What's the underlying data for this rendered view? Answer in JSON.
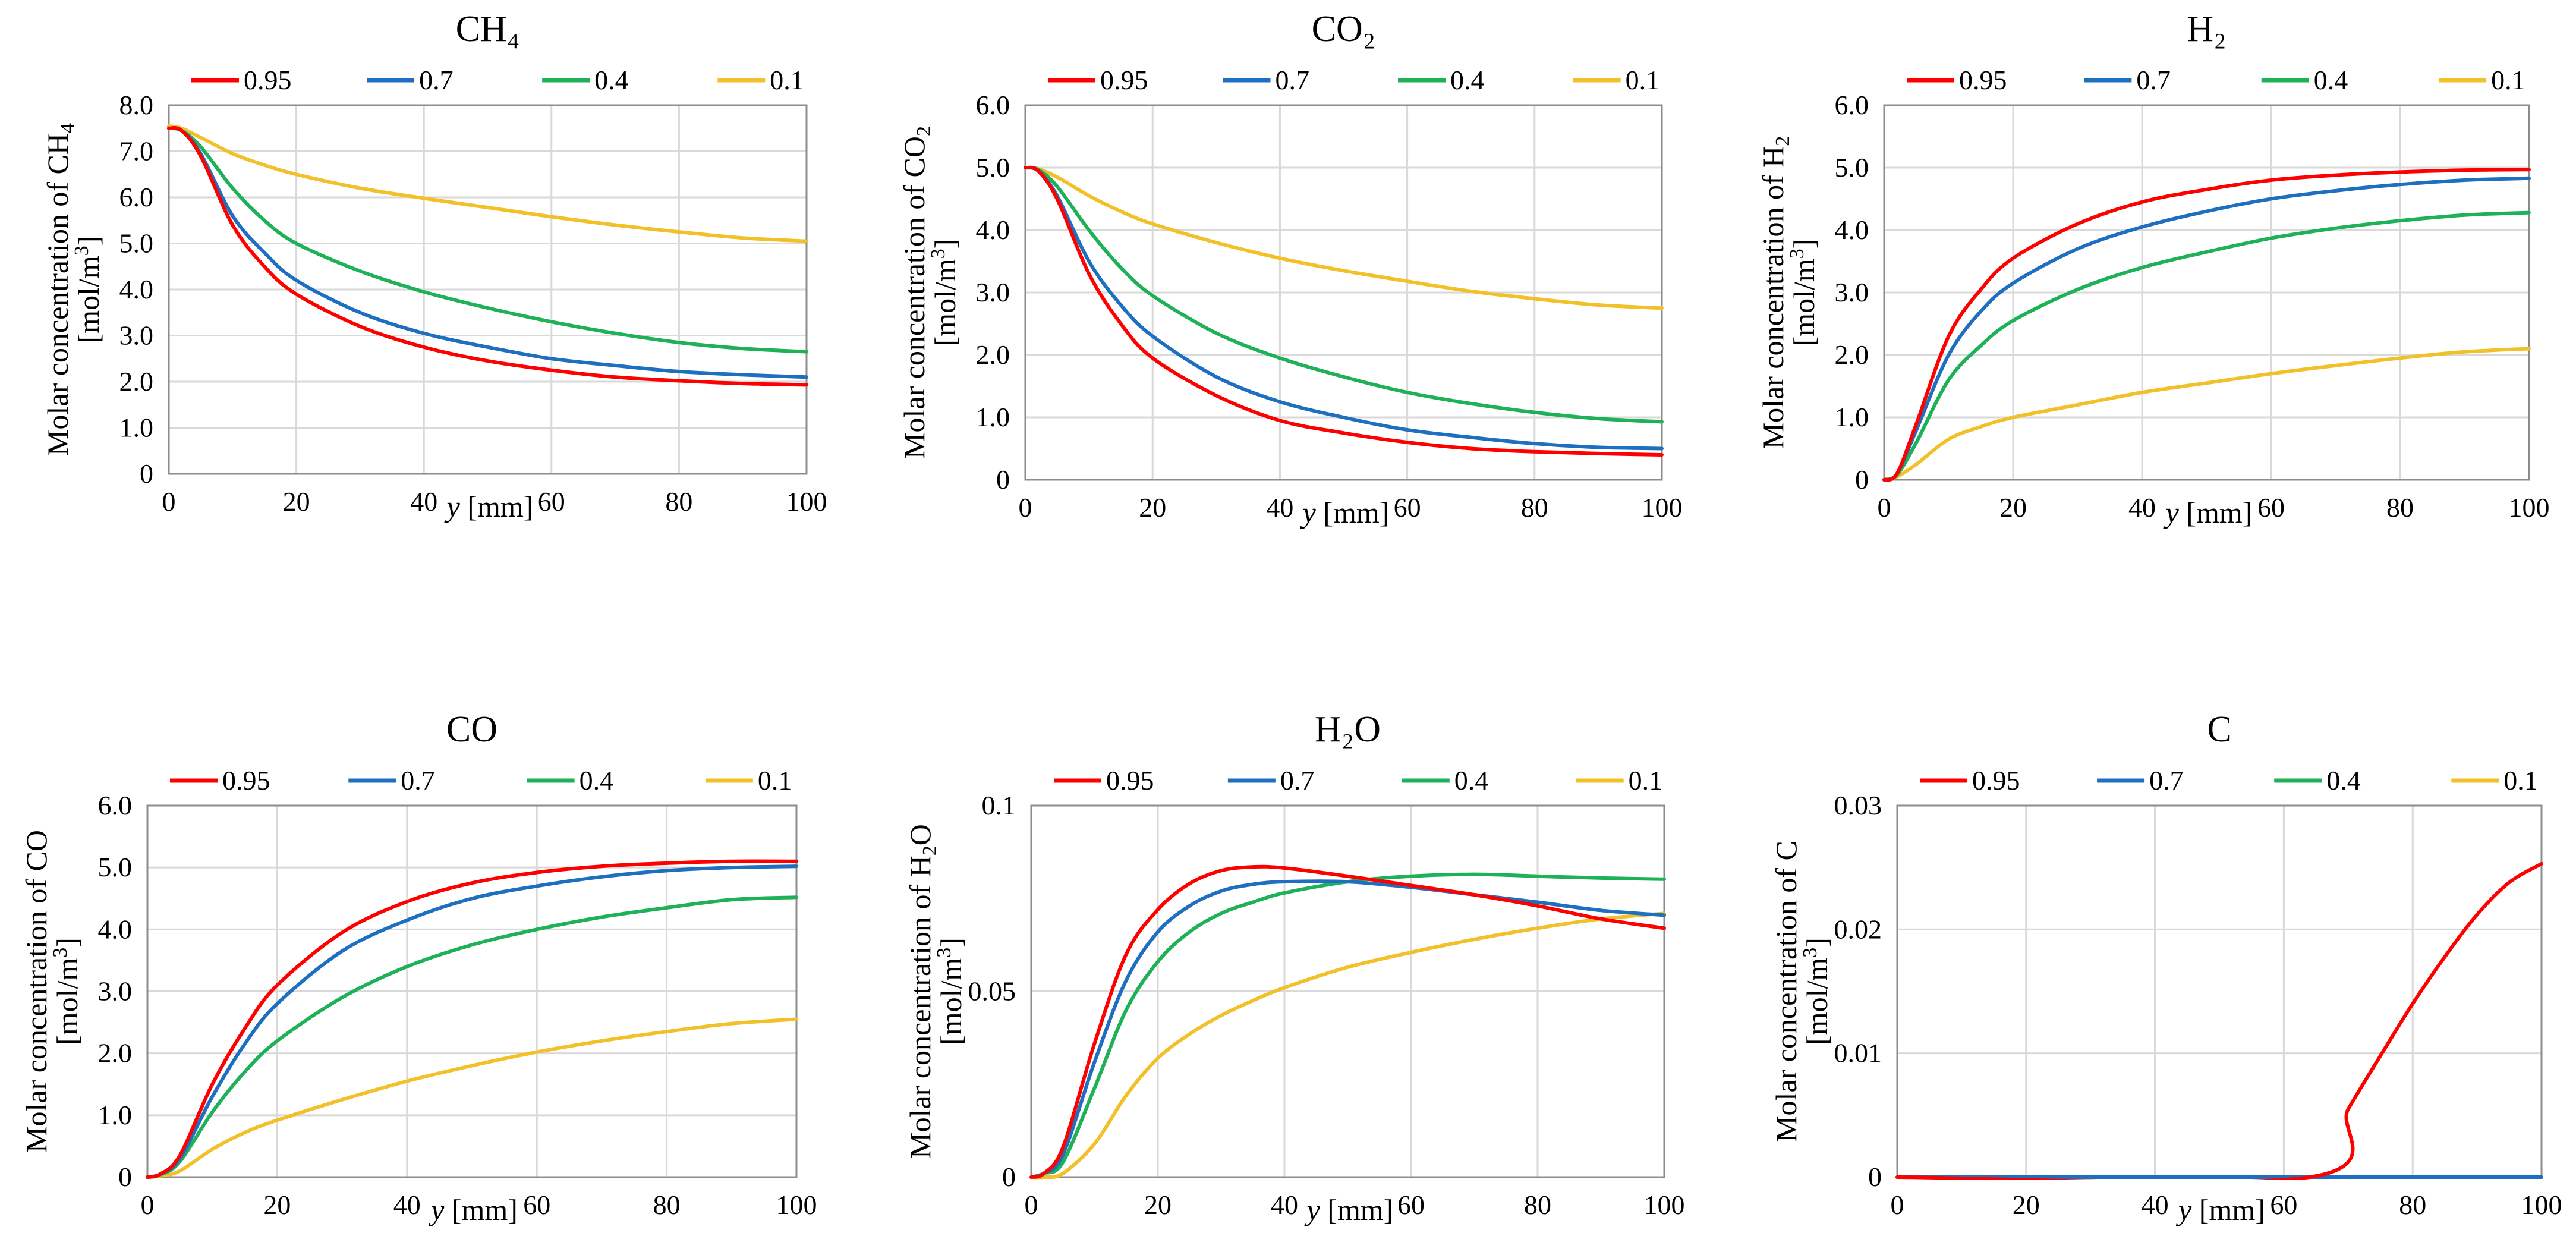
{
  "colors": {
    "0.95": "#ff0000",
    "0.7": "#1f6fc0",
    "0.4": "#1eb158",
    "0.1": "#f2c029"
  },
  "xlabel_y": "y",
  "xlabel_unit": "[mm]",
  "chart_data": [
    {
      "type": "line",
      "title": "CH₄",
      "ylabel_line1": "Molar concentration of CH",
      "ylabel_sub": "4",
      "ylabel_line2_pre": "[mol/m",
      "ylabel_line2_sup": "3",
      "ylabel_line2_post": "]",
      "ylim": [
        0,
        8
      ],
      "yticks": [
        0,
        1,
        2,
        3,
        4,
        5,
        6,
        7,
        8
      ],
      "ytick_labels": [
        "0",
        "1.0",
        "2.0",
        "3.0",
        "4.0",
        "5.0",
        "6.0",
        "7.0",
        "8.0"
      ],
      "xlim": [
        0,
        100
      ],
      "xticks": [
        0,
        20,
        40,
        60,
        80,
        100
      ],
      "xtick_labels": [
        "0",
        "20",
        "40",
        "60",
        "80",
        "100"
      ],
      "series": [
        {
          "name": "0.95",
          "x": [
            0,
            2,
            5,
            10,
            15,
            20,
            30,
            40,
            50,
            60,
            70,
            80,
            90,
            100
          ],
          "y": [
            7.5,
            7.45,
            6.9,
            5.4,
            4.5,
            3.9,
            3.2,
            2.75,
            2.45,
            2.25,
            2.1,
            2.02,
            1.96,
            1.93
          ]
        },
        {
          "name": "0.7",
          "x": [
            0,
            2,
            5,
            10,
            15,
            20,
            30,
            40,
            50,
            60,
            70,
            80,
            90,
            100
          ],
          "y": [
            7.5,
            7.45,
            6.95,
            5.6,
            4.8,
            4.2,
            3.5,
            3.05,
            2.75,
            2.5,
            2.35,
            2.22,
            2.15,
            2.1
          ]
        },
        {
          "name": "0.4",
          "x": [
            0,
            2,
            5,
            10,
            15,
            20,
            30,
            40,
            50,
            60,
            70,
            80,
            90,
            100
          ],
          "y": [
            7.5,
            7.45,
            7.1,
            6.2,
            5.5,
            5.0,
            4.4,
            3.95,
            3.6,
            3.3,
            3.05,
            2.85,
            2.72,
            2.65
          ]
        },
        {
          "name": "0.1",
          "x": [
            0,
            2,
            5,
            10,
            15,
            20,
            30,
            40,
            50,
            60,
            70,
            80,
            90,
            100
          ],
          "y": [
            7.55,
            7.5,
            7.3,
            6.95,
            6.7,
            6.5,
            6.2,
            5.98,
            5.78,
            5.58,
            5.4,
            5.25,
            5.12,
            5.05
          ]
        }
      ]
    },
    {
      "type": "line",
      "title": "CO₂",
      "ylabel_line1": "Molar concentration of CO",
      "ylabel_sub": "2",
      "ylabel_line2_pre": "[mol/m",
      "ylabel_line2_sup": "3",
      "ylabel_line2_post": "]",
      "ylim": [
        0,
        6
      ],
      "yticks": [
        0,
        1,
        2,
        3,
        4,
        5,
        6
      ],
      "ytick_labels": [
        "0",
        "1.0",
        "2.0",
        "3.0",
        "4.0",
        "5.0",
        "6.0"
      ],
      "xlim": [
        0,
        100
      ],
      "xticks": [
        0,
        20,
        40,
        60,
        80,
        100
      ],
      "xtick_labels": [
        "0",
        "20",
        "40",
        "60",
        "80",
        "100"
      ],
      "series": [
        {
          "name": "0.95",
          "x": [
            0,
            2,
            5,
            10,
            15,
            20,
            30,
            40,
            50,
            60,
            70,
            80,
            90,
            100
          ],
          "y": [
            5.0,
            4.95,
            4.5,
            3.3,
            2.5,
            1.95,
            1.35,
            0.95,
            0.75,
            0.6,
            0.5,
            0.45,
            0.42,
            0.4
          ]
        },
        {
          "name": "0.7",
          "x": [
            0,
            2,
            5,
            10,
            15,
            20,
            30,
            40,
            50,
            60,
            70,
            80,
            90,
            100
          ],
          "y": [
            5.0,
            4.95,
            4.55,
            3.5,
            2.8,
            2.3,
            1.65,
            1.25,
            1.0,
            0.8,
            0.68,
            0.58,
            0.52,
            0.5
          ]
        },
        {
          "name": "0.4",
          "x": [
            0,
            2,
            5,
            10,
            15,
            20,
            30,
            40,
            50,
            60,
            70,
            80,
            90,
            100
          ],
          "y": [
            5.0,
            4.97,
            4.7,
            4.0,
            3.4,
            2.95,
            2.35,
            1.95,
            1.65,
            1.4,
            1.22,
            1.08,
            0.98,
            0.93
          ]
        },
        {
          "name": "0.1",
          "x": [
            0,
            2,
            5,
            10,
            15,
            20,
            30,
            40,
            50,
            60,
            70,
            80,
            90,
            100
          ],
          "y": [
            5.0,
            4.98,
            4.85,
            4.55,
            4.3,
            4.1,
            3.8,
            3.55,
            3.35,
            3.18,
            3.02,
            2.9,
            2.8,
            2.75
          ]
        }
      ]
    },
    {
      "type": "line",
      "title": "H₂",
      "ylabel_line1": "Molar concentration of H",
      "ylabel_sub": "2",
      "ylabel_line2_pre": "[mol/m",
      "ylabel_line2_sup": "3",
      "ylabel_line2_post": "]",
      "ylim": [
        0,
        6
      ],
      "yticks": [
        0,
        1,
        2,
        3,
        4,
        5,
        6
      ],
      "ytick_labels": [
        "0",
        "1.0",
        "2.0",
        "3.0",
        "4.0",
        "5.0",
        "6.0"
      ],
      "xlim": [
        0,
        100
      ],
      "xticks": [
        0,
        20,
        40,
        60,
        80,
        100
      ],
      "xtick_labels": [
        "0",
        "20",
        "40",
        "60",
        "80",
        "100"
      ],
      "series": [
        {
          "name": "0.95",
          "x": [
            0,
            2,
            5,
            10,
            15,
            20,
            30,
            40,
            50,
            60,
            70,
            80,
            90,
            100
          ],
          "y": [
            0.0,
            0.1,
            0.9,
            2.3,
            3.05,
            3.55,
            4.1,
            4.45,
            4.65,
            4.8,
            4.88,
            4.93,
            4.96,
            4.97
          ]
        },
        {
          "name": "0.7",
          "x": [
            0,
            2,
            5,
            10,
            15,
            20,
            30,
            40,
            50,
            60,
            70,
            80,
            90,
            100
          ],
          "y": [
            0.0,
            0.1,
            0.8,
            2.0,
            2.7,
            3.15,
            3.7,
            4.05,
            4.3,
            4.5,
            4.63,
            4.73,
            4.8,
            4.83
          ]
        },
        {
          "name": "0.4",
          "x": [
            0,
            2,
            5,
            10,
            15,
            20,
            30,
            40,
            50,
            60,
            70,
            80,
            90,
            100
          ],
          "y": [
            0.0,
            0.08,
            0.6,
            1.6,
            2.15,
            2.55,
            3.05,
            3.4,
            3.65,
            3.87,
            4.03,
            4.15,
            4.24,
            4.28
          ]
        },
        {
          "name": "0.1",
          "x": [
            0,
            2,
            5,
            10,
            15,
            20,
            30,
            40,
            50,
            60,
            70,
            80,
            90,
            100
          ],
          "y": [
            0.0,
            0.05,
            0.25,
            0.65,
            0.85,
            1.0,
            1.2,
            1.4,
            1.55,
            1.7,
            1.83,
            1.95,
            2.05,
            2.1
          ]
        }
      ]
    },
    {
      "type": "line",
      "title": "CO",
      "ylabel_line1": "Molar concentration of CO",
      "ylabel_sub": "",
      "ylabel_line2_pre": "[mol/m",
      "ylabel_line2_sup": "3",
      "ylabel_line2_post": "]",
      "ylim": [
        0,
        6
      ],
      "yticks": [
        0,
        1,
        2,
        3,
        4,
        5,
        6
      ],
      "ytick_labels": [
        "0",
        "1.0",
        "2.0",
        "3.0",
        "4.0",
        "5.0",
        "6.0"
      ],
      "xlim": [
        0,
        100
      ],
      "xticks": [
        0,
        20,
        40,
        60,
        80,
        100
      ],
      "xtick_labels": [
        "0",
        "20",
        "40",
        "60",
        "80",
        "100"
      ],
      "series": [
        {
          "name": "0.95",
          "x": [
            0,
            2,
            5,
            10,
            15,
            20,
            30,
            40,
            50,
            60,
            70,
            80,
            90,
            100
          ],
          "y": [
            0.0,
            0.05,
            0.35,
            1.5,
            2.4,
            3.1,
            3.95,
            4.45,
            4.75,
            4.92,
            5.02,
            5.07,
            5.1,
            5.1
          ]
        },
        {
          "name": "0.7",
          "x": [
            0,
            2,
            5,
            10,
            15,
            20,
            30,
            40,
            50,
            60,
            70,
            80,
            90,
            100
          ],
          "y": [
            0.0,
            0.05,
            0.3,
            1.3,
            2.15,
            2.8,
            3.65,
            4.15,
            4.5,
            4.7,
            4.85,
            4.95,
            5.0,
            5.02
          ]
        },
        {
          "name": "0.4",
          "x": [
            0,
            2,
            5,
            10,
            15,
            20,
            30,
            40,
            50,
            60,
            70,
            80,
            90,
            100
          ],
          "y": [
            0.0,
            0.04,
            0.25,
            1.05,
            1.7,
            2.2,
            2.9,
            3.4,
            3.75,
            4.0,
            4.2,
            4.35,
            4.48,
            4.52
          ]
        },
        {
          "name": "0.1",
          "x": [
            0,
            2,
            5,
            10,
            15,
            20,
            30,
            40,
            50,
            60,
            70,
            80,
            90,
            100
          ],
          "y": [
            0.0,
            0.02,
            0.1,
            0.45,
            0.72,
            0.92,
            1.25,
            1.55,
            1.8,
            2.02,
            2.2,
            2.35,
            2.48,
            2.55
          ]
        }
      ]
    },
    {
      "type": "line",
      "title": "H₂O",
      "ylabel_line1": "Molar concentration of H",
      "ylabel_sub": "2",
      "ylabel_line1_tail": "O",
      "ylabel_line2_pre": "[mol/m",
      "ylabel_line2_sup": "3",
      "ylabel_line2_post": "]",
      "ylim": [
        0,
        0.1
      ],
      "yticks": [
        0,
        0.05,
        0.1
      ],
      "ytick_labels": [
        "0",
        "0.05",
        "0.1"
      ],
      "xlim": [
        0,
        100
      ],
      "xticks": [
        0,
        20,
        40,
        60,
        80,
        100
      ],
      "xtick_labels": [
        "0",
        "20",
        "40",
        "60",
        "80",
        "100"
      ],
      "series": [
        {
          "name": "0.95",
          "x": [
            0,
            2,
            5,
            10,
            15,
            20,
            25,
            30,
            35,
            40,
            50,
            60,
            70,
            80,
            90,
            100
          ],
          "y": [
            0.0,
            0.001,
            0.008,
            0.036,
            0.06,
            0.072,
            0.079,
            0.0825,
            0.0835,
            0.0832,
            0.081,
            0.0785,
            0.076,
            0.073,
            0.0695,
            0.067
          ]
        },
        {
          "name": "0.7",
          "x": [
            0,
            2,
            5,
            10,
            15,
            20,
            25,
            30,
            35,
            40,
            50,
            60,
            70,
            80,
            90,
            100
          ],
          "y": [
            0.0,
            0.001,
            0.006,
            0.031,
            0.053,
            0.066,
            0.073,
            0.077,
            0.0788,
            0.0795,
            0.0795,
            0.078,
            0.076,
            0.074,
            0.0718,
            0.0705
          ]
        },
        {
          "name": "0.4",
          "x": [
            0,
            2,
            5,
            10,
            15,
            20,
            25,
            30,
            35,
            40,
            50,
            60,
            70,
            80,
            90,
            100
          ],
          "y": [
            0.0,
            0.001,
            0.004,
            0.024,
            0.045,
            0.058,
            0.066,
            0.071,
            0.074,
            0.0765,
            0.0795,
            0.081,
            0.0815,
            0.081,
            0.0805,
            0.0802
          ]
        },
        {
          "name": "0.1",
          "x": [
            0,
            2,
            5,
            10,
            15,
            20,
            25,
            30,
            35,
            40,
            50,
            60,
            70,
            80,
            90,
            100
          ],
          "y": [
            0.0,
            0.0,
            0.001,
            0.009,
            0.022,
            0.032,
            0.0385,
            0.0435,
            0.0475,
            0.051,
            0.0565,
            0.0605,
            0.064,
            0.067,
            0.0695,
            0.071
          ]
        }
      ]
    },
    {
      "type": "line",
      "title": "C",
      "ylabel_line1": "Molar concentration of C",
      "ylabel_sub": "",
      "ylabel_line2_pre": "[mol/m",
      "ylabel_line2_sup": "3",
      "ylabel_line2_post": "]",
      "ylim": [
        0,
        0.03
      ],
      "yticks": [
        0,
        0.01,
        0.02,
        0.03
      ],
      "ytick_labels": [
        "0",
        "0.01",
        "0.02",
        "0.03"
      ],
      "xlim": [
        0,
        100
      ],
      "xticks": [
        0,
        20,
        40,
        60,
        80,
        100
      ],
      "xtick_labels": [
        "0",
        "20",
        "40",
        "60",
        "80",
        "100"
      ],
      "series": [
        {
          "name": "0.95",
          "x": [
            0,
            64,
            70,
            75,
            80,
            85,
            90,
            95,
            100
          ],
          "y": [
            0.0,
            0.0,
            0.0055,
            0.0098,
            0.014,
            0.0178,
            0.0212,
            0.0238,
            0.0253
          ]
        },
        {
          "name": "0.7",
          "x": [
            0,
            100
          ],
          "y": [
            0.0,
            0.0
          ]
        },
        {
          "name": "0.4",
          "x": [
            0,
            100
          ],
          "y": [
            0.0,
            0.0
          ]
        },
        {
          "name": "0.1",
          "x": [
            0,
            100
          ],
          "y": [
            0.0,
            0.0
          ]
        }
      ]
    }
  ]
}
